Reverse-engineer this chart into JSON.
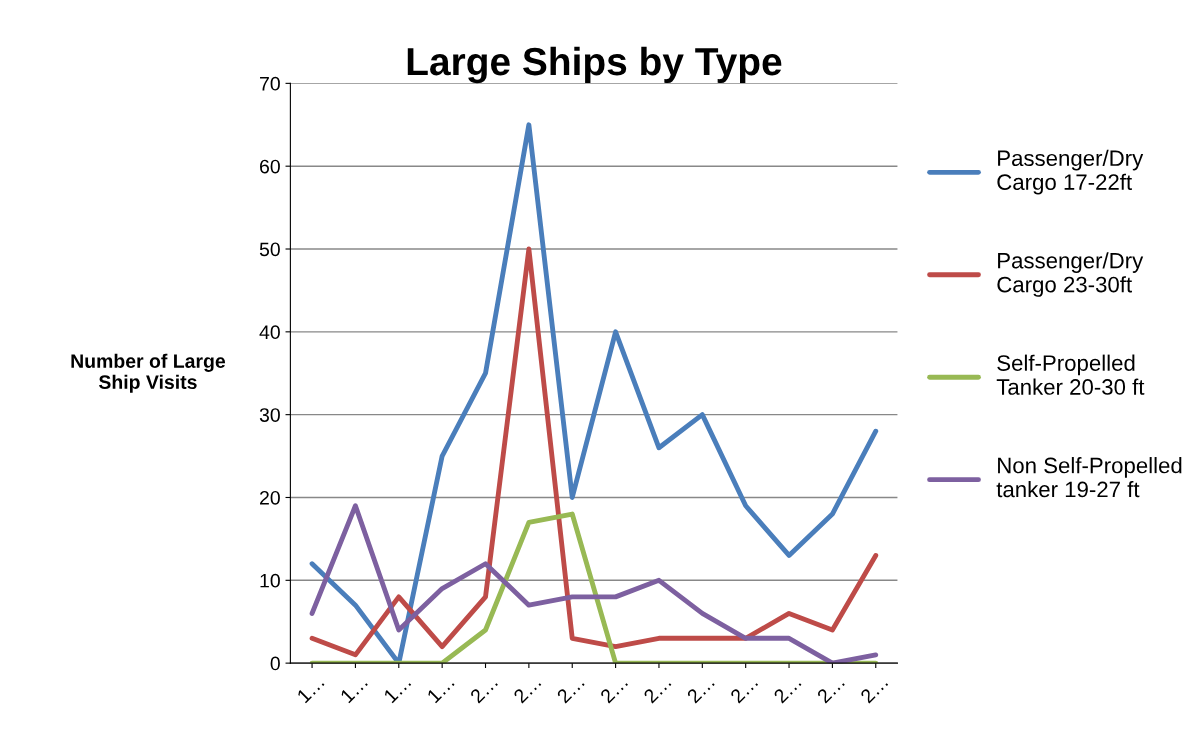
{
  "chart_data": {
    "type": "line",
    "title": "Large Ships by Type",
    "ylabel": "Number of Large\nShip Visits",
    "categories": [
      "1…",
      "1…",
      "1…",
      "1…",
      "2…",
      "2…",
      "2…",
      "2…",
      "2…",
      "2…",
      "2…",
      "2…",
      "2…",
      "2…"
    ],
    "series": [
      {
        "name": "Passenger/Dry\nCargo 17-22ft",
        "color": "#4a7ebb",
        "values": [
          12,
          7,
          0,
          25,
          35,
          65,
          20,
          40,
          26,
          30,
          19,
          13,
          18,
          28
        ]
      },
      {
        "name": "Passenger/Dry\nCargo 23-30ft",
        "color": "#be4b48",
        "values": [
          3,
          1,
          8,
          2,
          8,
          50,
          3,
          2,
          3,
          3,
          3,
          6,
          4,
          13
        ]
      },
      {
        "name": "Self-Propelled\nTanker 20-30 ft",
        "color": "#98b954",
        "values": [
          0,
          0,
          0,
          0,
          4,
          17,
          18,
          0,
          0,
          0,
          0,
          0,
          0,
          0
        ]
      },
      {
        "name": "Non Self-Propelled\ntanker 19-27 ft",
        "color": "#7d60a0",
        "values": [
          6,
          19,
          4,
          9,
          12,
          7,
          8,
          8,
          10,
          6,
          3,
          3,
          0,
          1
        ]
      }
    ],
    "ylim": [
      0,
      70
    ],
    "yticks": [
      0,
      10,
      20,
      30,
      40,
      50,
      60,
      70
    ],
    "grid": "y",
    "legend": "right",
    "marker": "none",
    "line_style": "solid"
  }
}
